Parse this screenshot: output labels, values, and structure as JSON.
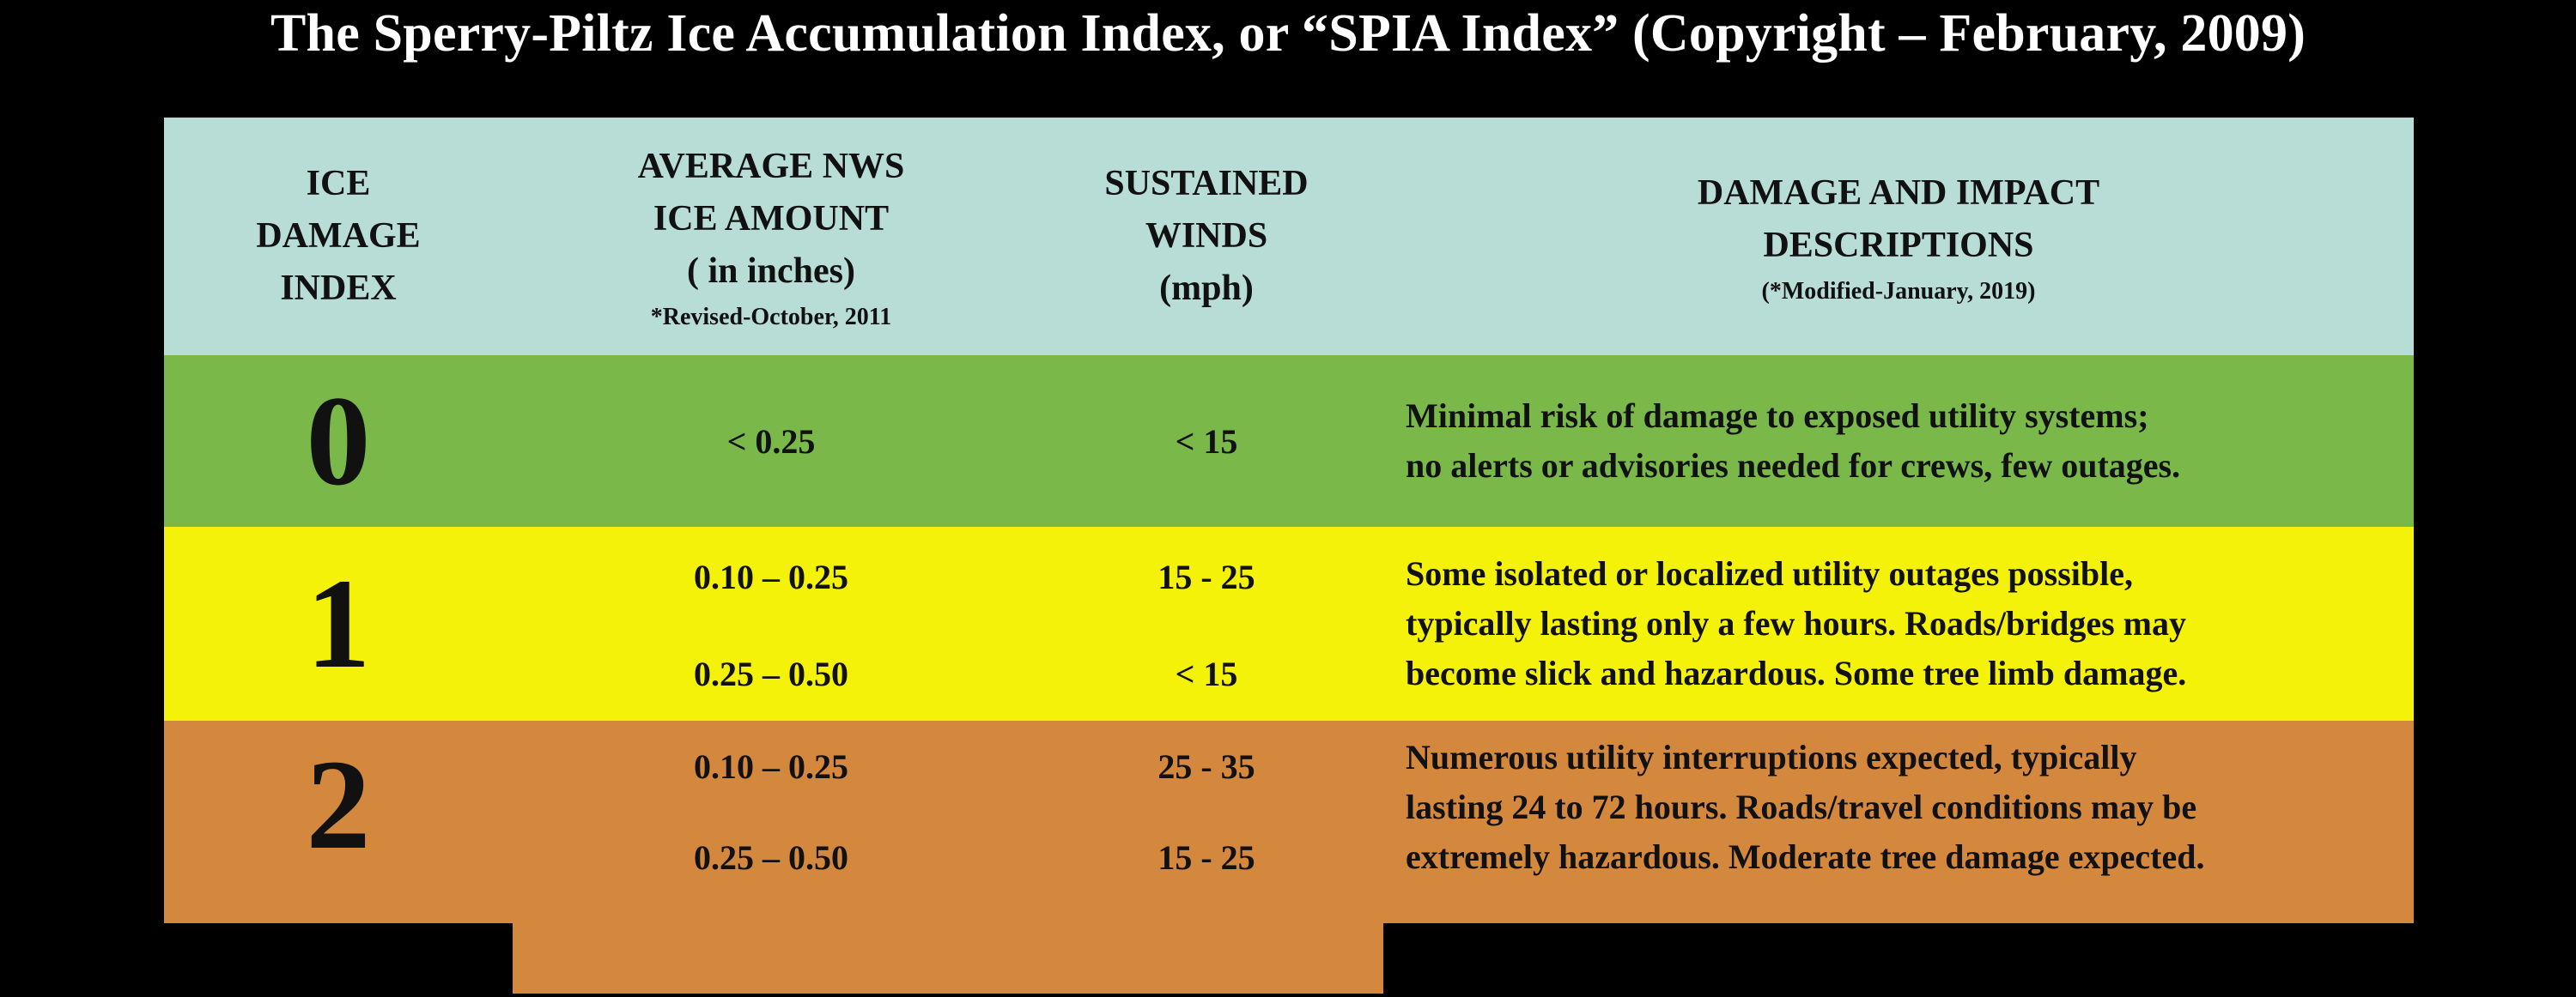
{
  "title": "The Sperry-Piltz Ice Accumulation Index, or “SPIA Index”  (Copyright – February, 2009)",
  "header": {
    "col1": [
      "ICE",
      "DAMAGE",
      "INDEX"
    ],
    "col2": [
      "AVERAGE NWS",
      "ICE AMOUNT",
      "( in inches)"
    ],
    "col2_note": "*Revised-October, 2011",
    "col3": [
      "SUSTAINED",
      "WINDS",
      "(mph)"
    ],
    "col4": [
      "DAMAGE AND IMPACT",
      "DESCRIPTIONS"
    ],
    "col4_note": "(*Modified-January, 2019)"
  },
  "rows": [
    {
      "index": "0",
      "color": "#7ab84a",
      "entries": [
        {
          "ice": "< 0.25",
          "wind": "< 15"
        }
      ],
      "description": [
        "Minimal risk of damage to exposed utility systems;",
        "no alerts or advisories needed for crews, few outages."
      ]
    },
    {
      "index": "1",
      "color": "#f5f209",
      "entries": [
        {
          "ice": "0.10 – 0.25",
          "wind": "15 - 25"
        },
        {
          "ice": "0.25 – 0.50",
          "wind": "< 15"
        }
      ],
      "description": [
        "Some isolated or localized utility outages possible,",
        "typically lasting only a few hours. Roads/bridges may",
        "become slick and hazardous. Some tree limb damage."
      ]
    },
    {
      "index": "2",
      "color": "#d4883d",
      "entries": [
        {
          "ice": "0.10 – 0.25",
          "wind": "25 - 35"
        },
        {
          "ice": "0.25 – 0.50",
          "wind": "15 - 25"
        }
      ],
      "description": [
        "Numerous utility interruptions expected, typically",
        "lasting 24 to 72 hours. Roads/travel conditions may be",
        "extremely hazardous. Moderate tree damage expected."
      ]
    }
  ]
}
